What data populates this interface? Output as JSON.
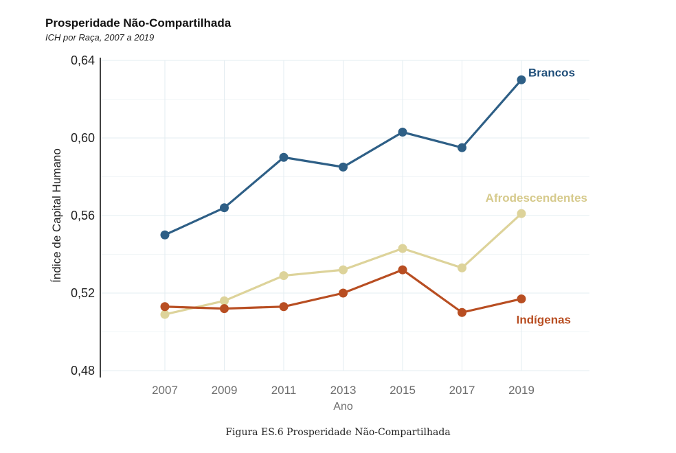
{
  "chart_title": "Prosperidade Não-Compartilhada",
  "chart_subtitle": "ICH por Raça, 2007 a 2019",
  "figure_caption": "Figura ES.6 Prosperidade Não-Compartilhada",
  "chart_data": {
    "type": "line",
    "title": "Prosperidade Não-Compartilhada",
    "subtitle": "ICH por Raça, 2007 a 2019",
    "xlabel": "Ano",
    "ylabel": "Índice de Capital Humano",
    "categories": [
      "2007",
      "2009",
      "2011",
      "2013",
      "2015",
      "2017",
      "2019"
    ],
    "ylim": [
      0.48,
      0.64
    ],
    "yticks": [
      "0,48",
      "0,52",
      "0,56",
      "0,60",
      "0,64"
    ],
    "ytick_values": [
      0.48,
      0.52,
      0.56,
      0.6,
      0.64
    ],
    "grid": true,
    "legend": "direct labels at series ends",
    "series": [
      {
        "name": "Brancos",
        "color": "#2e5f86",
        "label_color": "#1f4e79",
        "values": [
          0.55,
          0.564,
          0.59,
          0.585,
          0.603,
          0.595,
          0.63
        ]
      },
      {
        "name": "Afrodescendentes",
        "color": "#ddd39a",
        "label_color": "#d6ca8c",
        "values": [
          0.509,
          0.516,
          0.529,
          0.532,
          0.543,
          0.533,
          0.561
        ]
      },
      {
        "name": "Indígenas",
        "color": "#b84e22",
        "label_color": "#b84e22",
        "values": [
          0.513,
          0.512,
          0.513,
          0.52,
          0.532,
          0.51,
          0.517
        ]
      }
    ]
  }
}
